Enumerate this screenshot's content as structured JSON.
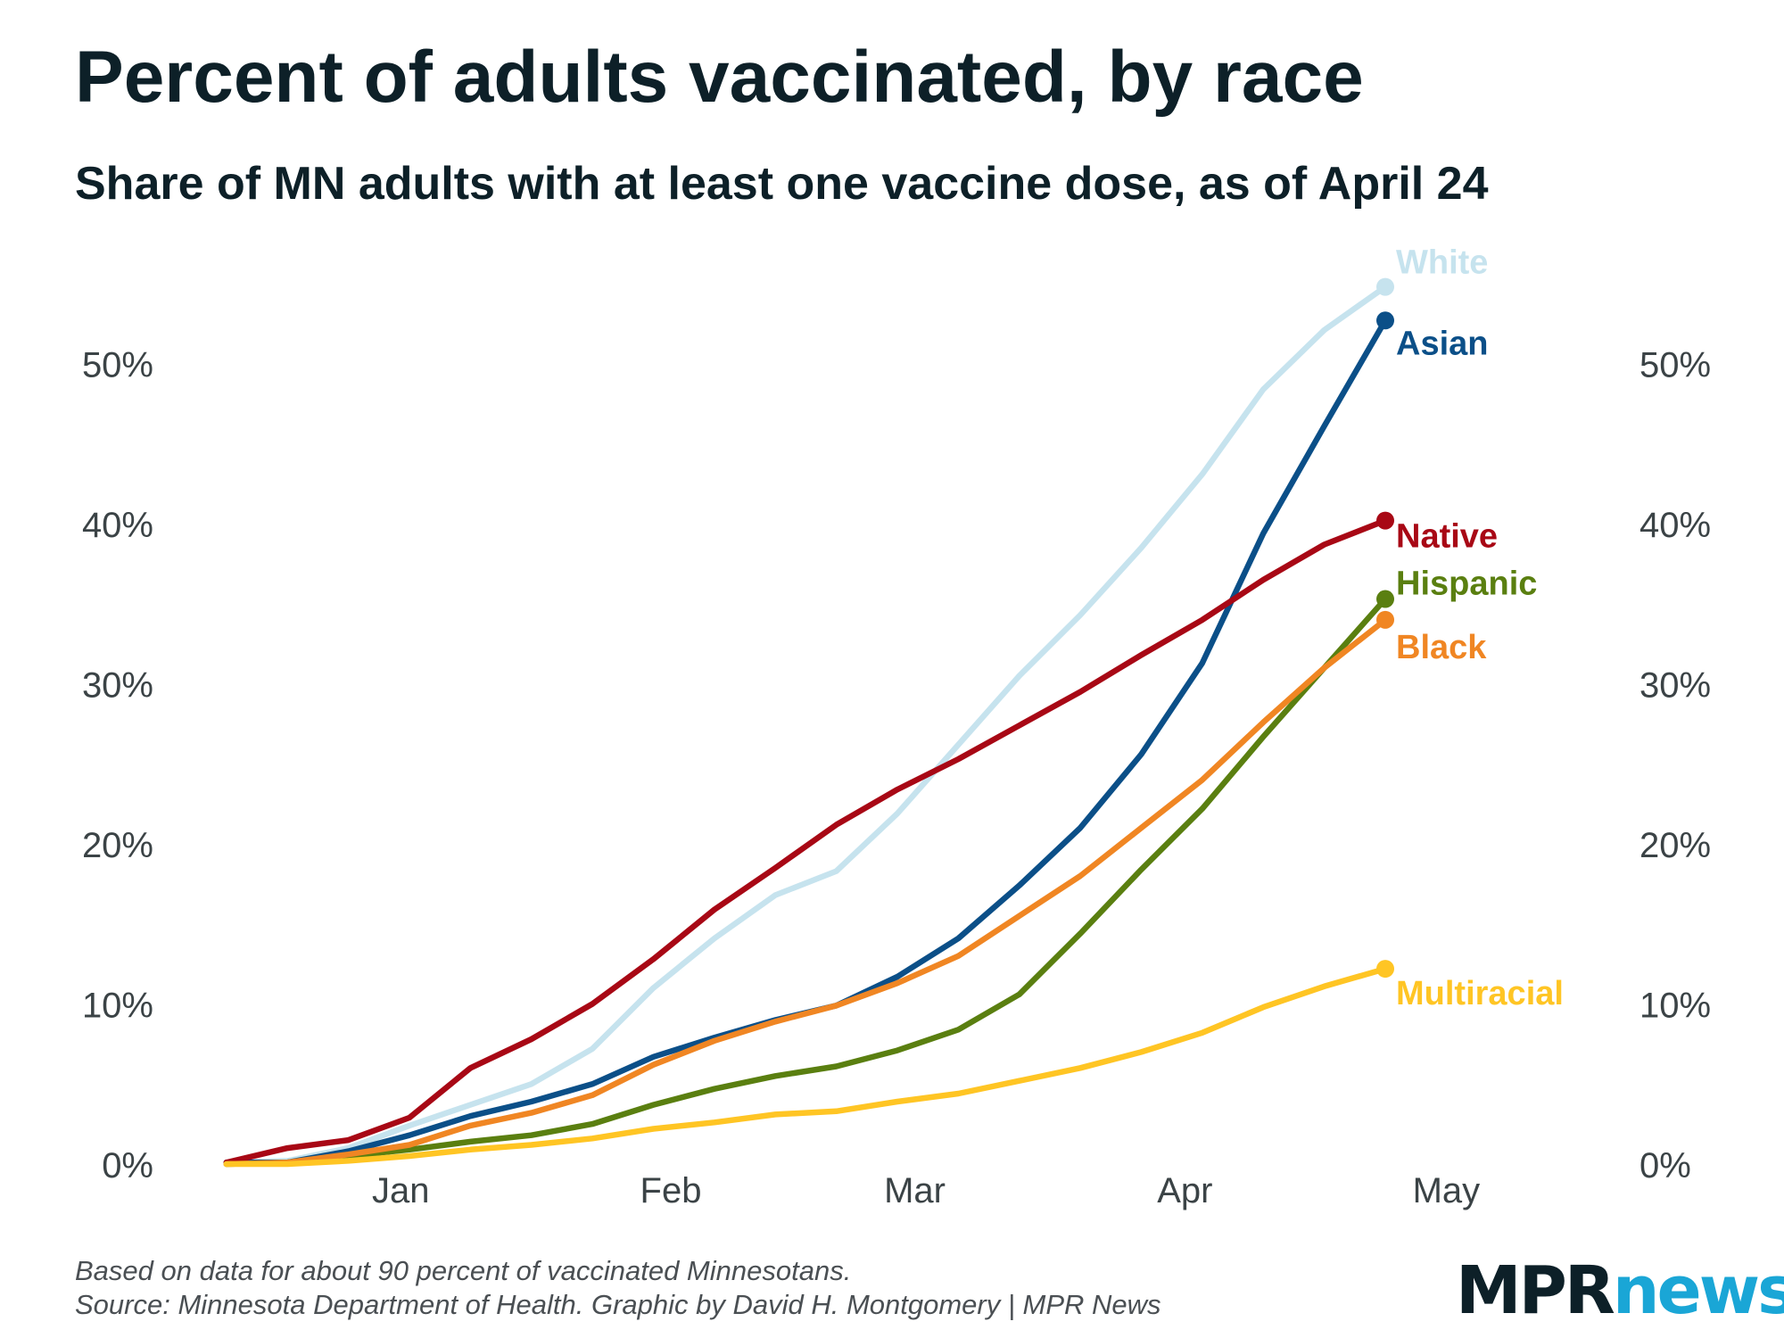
{
  "header": {
    "title": "Percent of adults vaccinated, by race",
    "subtitle": "Share of MN adults with at least one vaccine dose, as of April 24"
  },
  "footer": {
    "note": "Based on data for about 90 percent of vaccinated Minnesotans.",
    "source": "Source: Minnesota Department of Health. Graphic by David H. Montgomery | MPR News"
  },
  "logo": {
    "part1": "MPR",
    "part2": "news"
  },
  "chart_data": {
    "type": "line",
    "title": "Percent of adults vaccinated, by race",
    "subtitle": "Share of MN adults with at least one vaccine dose, as of April 24",
    "xlabel": "",
    "ylabel": "",
    "x": [
      "2020-12-12",
      "2020-12-19",
      "2020-12-26",
      "2021-01-02",
      "2021-01-09",
      "2021-01-16",
      "2021-01-23",
      "2021-01-30",
      "2021-02-06",
      "2021-02-13",
      "2021-02-20",
      "2021-02-27",
      "2021-03-06",
      "2021-03-13",
      "2021-03-20",
      "2021-03-27",
      "2021-04-03",
      "2021-04-10",
      "2021-04-17",
      "2021-04-24"
    ],
    "xlim": [
      "2020-12-07",
      "2021-05-07"
    ],
    "ylim": [
      0,
      55
    ],
    "y_ticks": [
      0,
      10,
      20,
      30,
      40,
      50
    ],
    "y_tick_labels": [
      "0%",
      "10%",
      "20%",
      "30%",
      "40%",
      "50%"
    ],
    "x_ticks": [
      "2021-01-01",
      "2021-02-01",
      "2021-03-01",
      "2021-04-01",
      "2021-05-01"
    ],
    "x_tick_labels": [
      "Jan",
      "Feb",
      "Mar",
      "Apr",
      "May"
    ],
    "grid": false,
    "legend": "direct labels at line ends",
    "series": [
      {
        "name": "White",
        "color": "#c6e3ee",
        "values": [
          0.1,
          0.2,
          1.0,
          2.4,
          3.7,
          5.0,
          7.2,
          11.0,
          14.1,
          16.8,
          18.3,
          21.9,
          26.2,
          30.5,
          34.3,
          38.5,
          43.1,
          48.4,
          52.1,
          54.8
        ]
      },
      {
        "name": "Asian",
        "color": "#0b4f88",
        "values": [
          0.1,
          0.1,
          0.8,
          1.8,
          3.0,
          3.9,
          5.0,
          6.7,
          7.9,
          9.0,
          9.9,
          11.7,
          14.1,
          17.4,
          21.0,
          25.6,
          31.3,
          39.4,
          46.1,
          52.7
        ]
      },
      {
        "name": "Native",
        "color": "#a80815",
        "values": [
          0.1,
          1.0,
          1.5,
          2.9,
          6.0,
          7.8,
          10.0,
          12.8,
          15.9,
          18.5,
          21.2,
          23.4,
          25.3,
          27.4,
          29.5,
          31.8,
          34.0,
          36.5,
          38.7,
          40.2
        ]
      },
      {
        "name": "Hispanic",
        "color": "#5a7f10",
        "values": [
          0.0,
          0.1,
          0.5,
          0.9,
          1.4,
          1.8,
          2.5,
          3.7,
          4.7,
          5.5,
          6.1,
          7.1,
          8.4,
          10.6,
          14.4,
          18.4,
          22.2,
          26.7,
          31.0,
          35.3
        ]
      },
      {
        "name": "Black",
        "color": "#f08623",
        "values": [
          0.0,
          0.1,
          0.6,
          1.2,
          2.4,
          3.2,
          4.3,
          6.2,
          7.7,
          8.9,
          9.9,
          11.3,
          13.0,
          15.5,
          18.0,
          21.0,
          24.0,
          27.6,
          31.0,
          34.0
        ]
      },
      {
        "name": "Multiracial",
        "color": "#ffc524",
        "values": [
          0.0,
          0.0,
          0.2,
          0.5,
          0.9,
          1.2,
          1.6,
          2.2,
          2.6,
          3.1,
          3.3,
          3.9,
          4.4,
          5.2,
          6.0,
          7.0,
          8.2,
          9.8,
          11.1,
          12.2
        ]
      }
    ]
  }
}
